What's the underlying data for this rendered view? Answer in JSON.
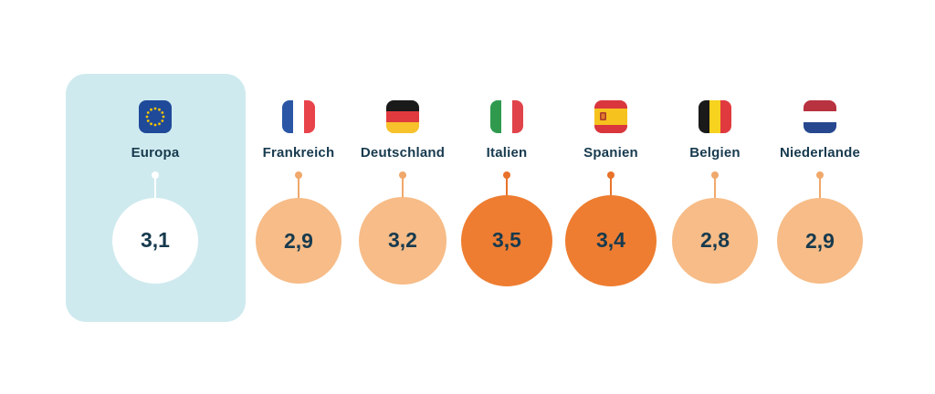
{
  "chart_data": {
    "type": "bubble",
    "categories": [
      "Europa",
      "Frankreich",
      "Deutschland",
      "Italien",
      "Spanien",
      "Belgien",
      "Niederlande"
    ],
    "values": [
      3.1,
      2.9,
      3.2,
      3.5,
      3.4,
      2.8,
      2.9
    ],
    "labels": [
      "3,1",
      "2,9",
      "3,2",
      "3,5",
      "3,4",
      "2,8",
      "2,9"
    ],
    "flags": [
      "eu-flag-icon",
      "france-flag-icon",
      "germany-flag-icon",
      "italy-flag-icon",
      "spain-flag-icon",
      "belgium-flag-icon",
      "netherlands-flag-icon"
    ],
    "highlight": [
      "reference",
      "normal",
      "normal",
      "high",
      "high",
      "normal",
      "normal"
    ],
    "colors": {
      "panel": "#cfeaee",
      "reference_bubble": "#ffffff",
      "normal_bubble": "#f7bc87",
      "high_bubble": "#ee7d31",
      "stem_normal": "#f0a86b",
      "stem_high": "#e8722a",
      "stem_reference": "#ffffff",
      "text": "#173a4e"
    }
  }
}
